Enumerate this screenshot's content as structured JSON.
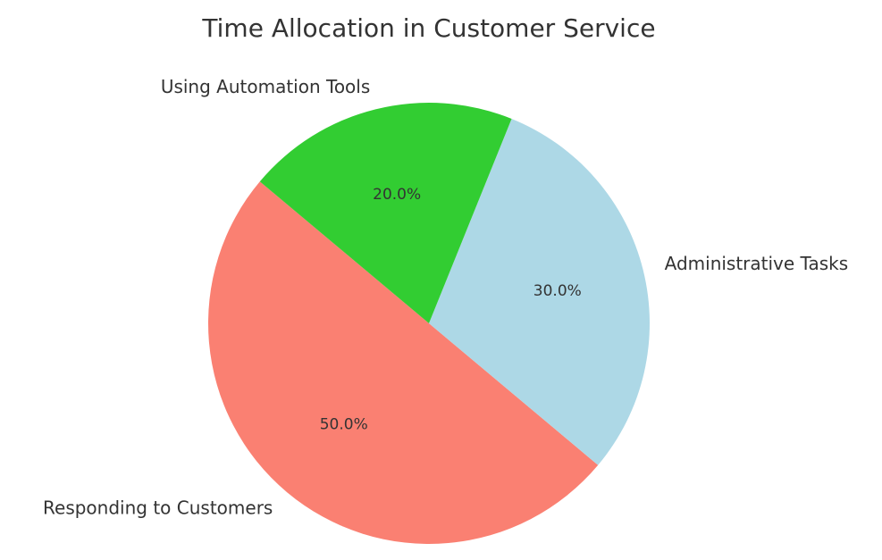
{
  "chart_data": {
    "type": "pie",
    "title": "Time Allocation in Customer Service",
    "categories": [
      "Responding to Customers",
      "Administrative Tasks",
      "Using Automation Tools"
    ],
    "values": [
      50,
      30,
      20
    ],
    "value_labels": [
      "50.0%",
      "30.0%",
      "20.0%"
    ],
    "colors": [
      "#fa8072",
      "#add8e6",
      "#32cd32"
    ]
  }
}
